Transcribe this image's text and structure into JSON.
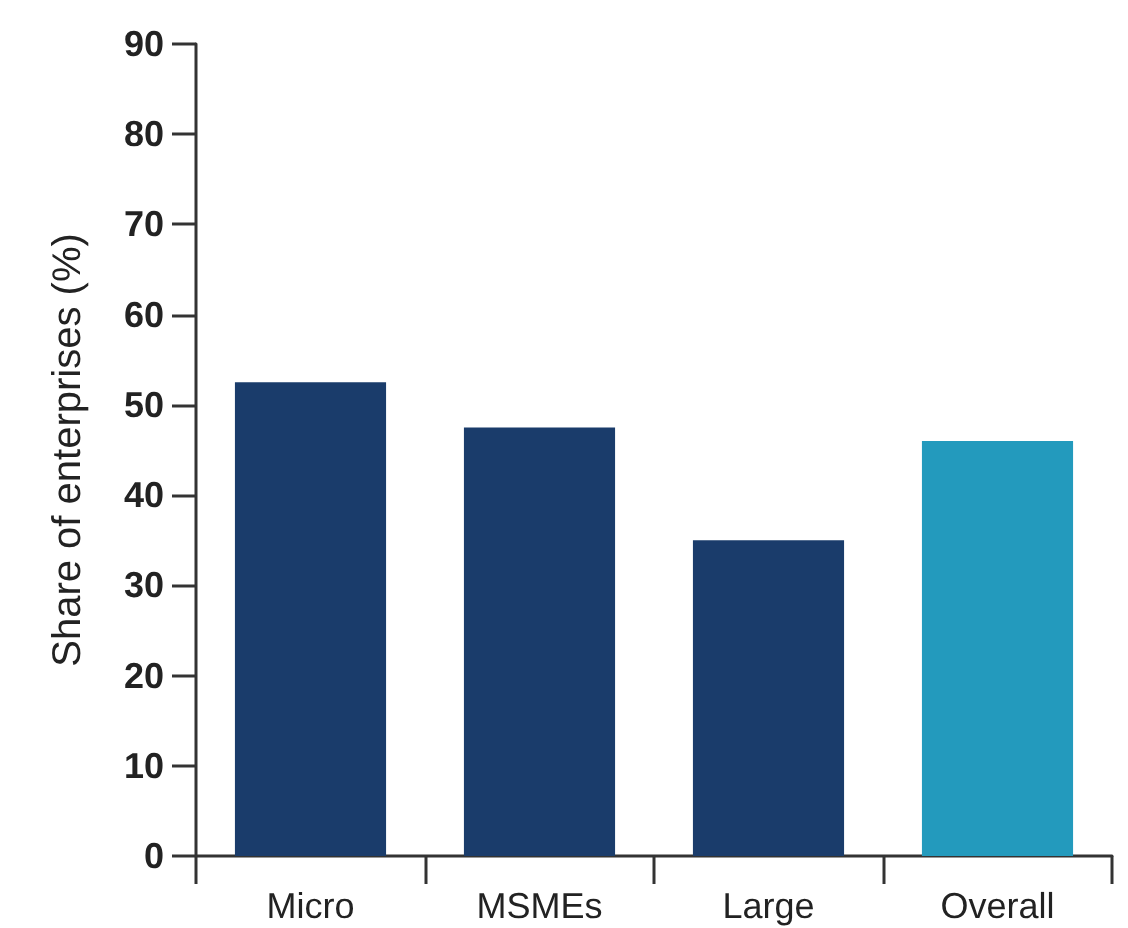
{
  "chart_data": {
    "type": "bar",
    "ylabel": "Share of enterprises (%)",
    "categories": [
      "Micro",
      "MSMEs",
      "Large",
      "Overall"
    ],
    "values": [
      52.5,
      47.5,
      35,
      46
    ],
    "colors": [
      "#1a3c6b",
      "#1a3c6b",
      "#1a3c6b",
      "#239abd"
    ],
    "ylim": [
      0,
      90
    ],
    "yticks": [
      0,
      10,
      20,
      30,
      40,
      50,
      60,
      70,
      80,
      90
    ],
    "grid": false
  }
}
